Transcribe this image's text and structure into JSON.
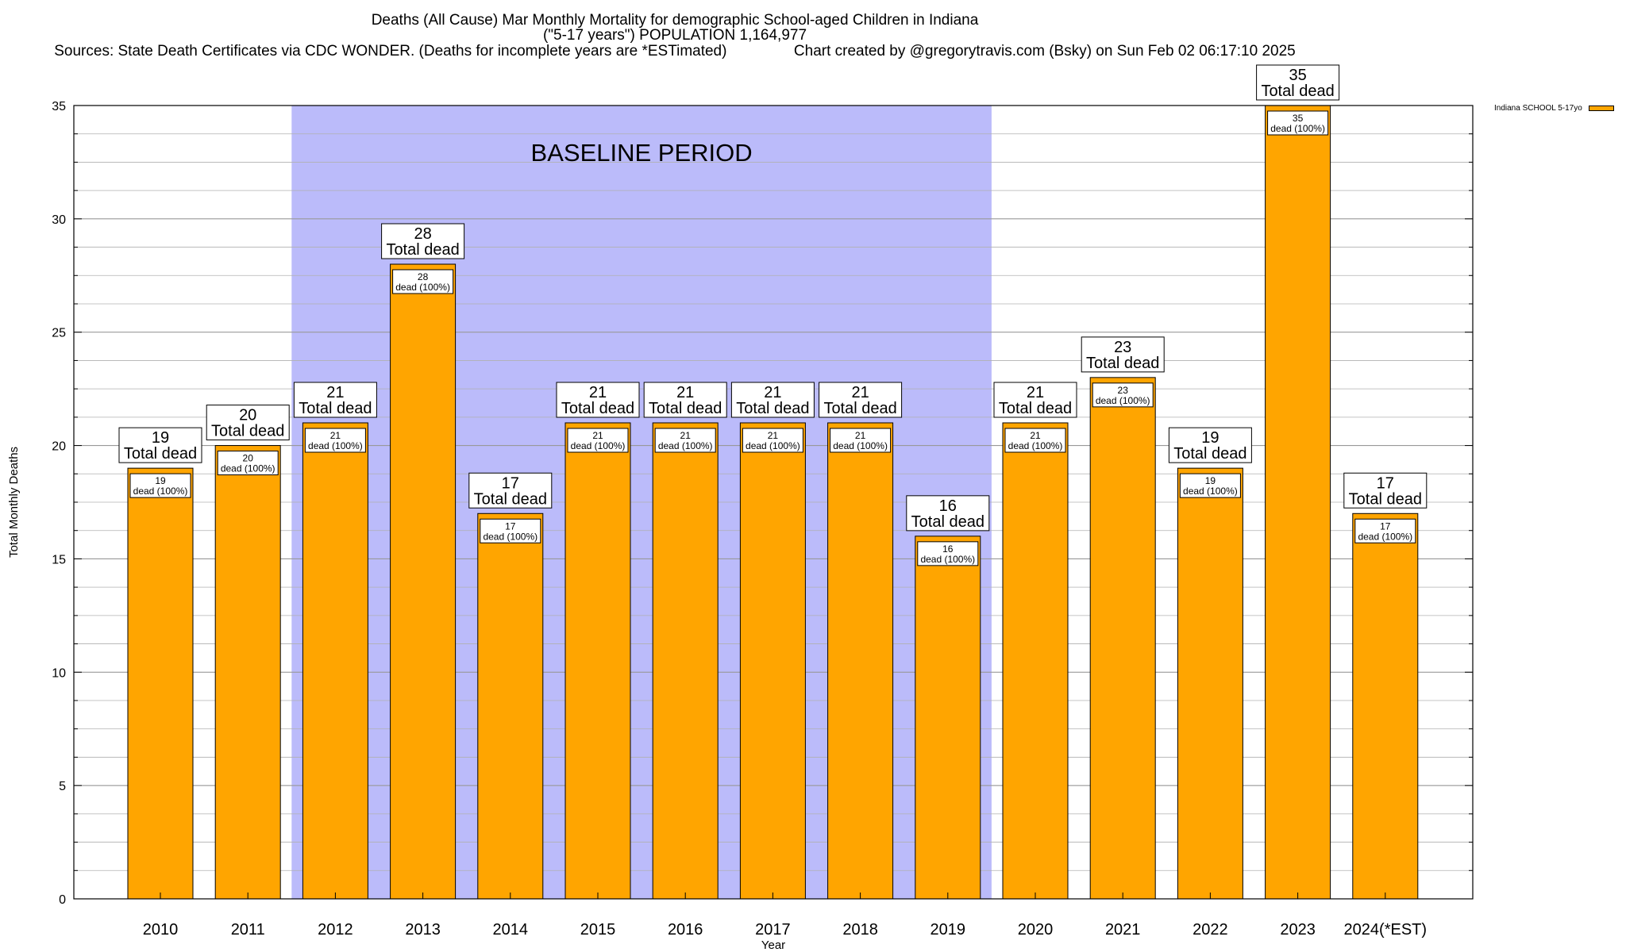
{
  "header": {
    "title_line1": "Deaths (All Cause) Mar Monthly Mortality for demographic School-aged Children in Indiana",
    "title_line2": "(\"5-17 years\") POPULATION 1,164,977",
    "title_line3": "Sources: State Death Certificates via CDC WONDER. (Deaths for incomplete years are *ESTimated)                Chart created by @gregorytravis.com (Bsky) on Sun Feb 02 06:17:10 2025"
  },
  "legend": {
    "label": "Indiana SCHOOL 5-17yo"
  },
  "chart_data": {
    "type": "bar",
    "categories": [
      "2010",
      "2011",
      "2012",
      "2013",
      "2014",
      "2015",
      "2016",
      "2017",
      "2018",
      "2019",
      "2020",
      "2021",
      "2022",
      "2023",
      "2024(*EST)"
    ],
    "series": [
      {
        "name": "Indiana SCHOOL 5-17yo",
        "values": [
          19,
          20,
          21,
          28,
          17,
          21,
          21,
          21,
          21,
          16,
          21,
          23,
          19,
          35,
          17
        ]
      }
    ],
    "xlabel": "Year",
    "ylabel": "Total Monthly Deaths",
    "ylim": [
      0,
      35
    ],
    "yticks": [
      0,
      5,
      10,
      15,
      20,
      25,
      30,
      35
    ],
    "grid": true,
    "legend_position": "top-right",
    "bar_label_top": "Total dead",
    "bar_label_inner_suffix": "dead (100%)",
    "baseline": {
      "label": "BASELINE PERIOD",
      "from": "2012",
      "to": "2019"
    },
    "colors": {
      "bar": "#ffa500",
      "baseline_band": "#bbbbfa",
      "grid": "#b0b0b0"
    }
  }
}
